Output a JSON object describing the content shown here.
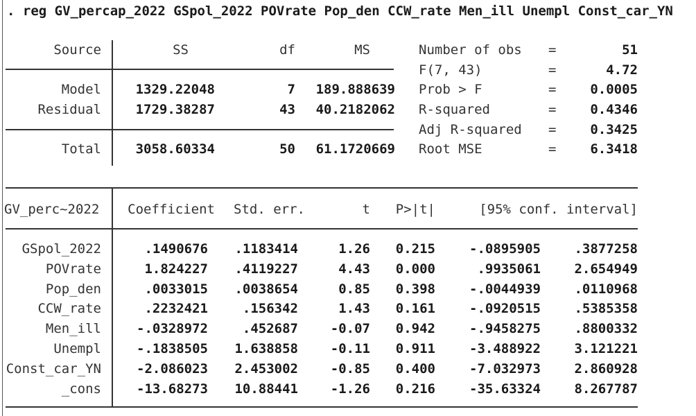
{
  "command": ". reg GV_percap_2022 GSpol_2022 POVrate Pop_den CCW_rate Men_ill Unempl Const_car_YN",
  "anova": {
    "headers": [
      "Source",
      "SS",
      "df",
      "MS"
    ],
    "rows": [
      {
        "source": "Model",
        "ss": "1329.22048",
        "df": "7",
        "ms": "189.888639"
      },
      {
        "source": "Residual",
        "ss": "1729.38287",
        "df": "43",
        "ms": "40.2182062"
      },
      {
        "source": "Total",
        "ss": "3058.60334",
        "df": "50",
        "ms": "61.1720669"
      }
    ]
  },
  "stats": [
    {
      "label": "Number of obs",
      "eq": "=",
      "value": "51"
    },
    {
      "label": "F(7, 43)",
      "eq": "=",
      "value": "4.72"
    },
    {
      "label": "Prob > F",
      "eq": "=",
      "value": "0.0005"
    },
    {
      "label": "R-squared",
      "eq": "=",
      "value": "0.4346"
    },
    {
      "label": "Adj R-squared",
      "eq": "=",
      "value": "0.3425"
    },
    {
      "label": "Root MSE",
      "eq": "=",
      "value": "6.3418"
    }
  ],
  "coef": {
    "headers": [
      "GV_perc~2022",
      "Coefficient",
      "Std. err.",
      "t",
      "P>|t|",
      "[95% conf. interval]"
    ],
    "rows": [
      {
        "var": "GSpol_2022",
        "coef": ".1490676",
        "se": ".1183414",
        "t": "1.26",
        "p": "0.215",
        "lo": "-.0895905",
        "hi": ".3877258"
      },
      {
        "var": "POVrate",
        "coef": "1.824227",
        "se": ".4119227",
        "t": "4.43",
        "p": "0.000",
        "lo": ".9935061",
        "hi": "2.654949"
      },
      {
        "var": "Pop_den",
        "coef": ".0033015",
        "se": ".0038654",
        "t": "0.85",
        "p": "0.398",
        "lo": "-.0044939",
        "hi": ".0110968"
      },
      {
        "var": "CCW_rate",
        "coef": ".2232421",
        "se": ".156342",
        "t": "1.43",
        "p": "0.161",
        "lo": "-.0920515",
        "hi": ".5385358"
      },
      {
        "var": "Men_ill",
        "coef": "-.0328972",
        "se": ".452687",
        "t": "-0.07",
        "p": "0.942",
        "lo": "-.9458275",
        "hi": ".8800332"
      },
      {
        "var": "Unempl",
        "coef": "-.1838505",
        "se": "1.638858",
        "t": "-0.11",
        "p": "0.911",
        "lo": "-3.488922",
        "hi": "3.121221"
      },
      {
        "var": "Const_car_YN",
        "coef": "-2.086023",
        "se": "2.453002",
        "t": "-0.85",
        "p": "0.400",
        "lo": "-7.032973",
        "hi": "2.860928"
      },
      {
        "var": "_cons",
        "coef": "-13.68273",
        "se": "10.88441",
        "t": "-1.26",
        "p": "0.216",
        "lo": "-35.63324",
        "hi": "8.267787"
      }
    ]
  }
}
